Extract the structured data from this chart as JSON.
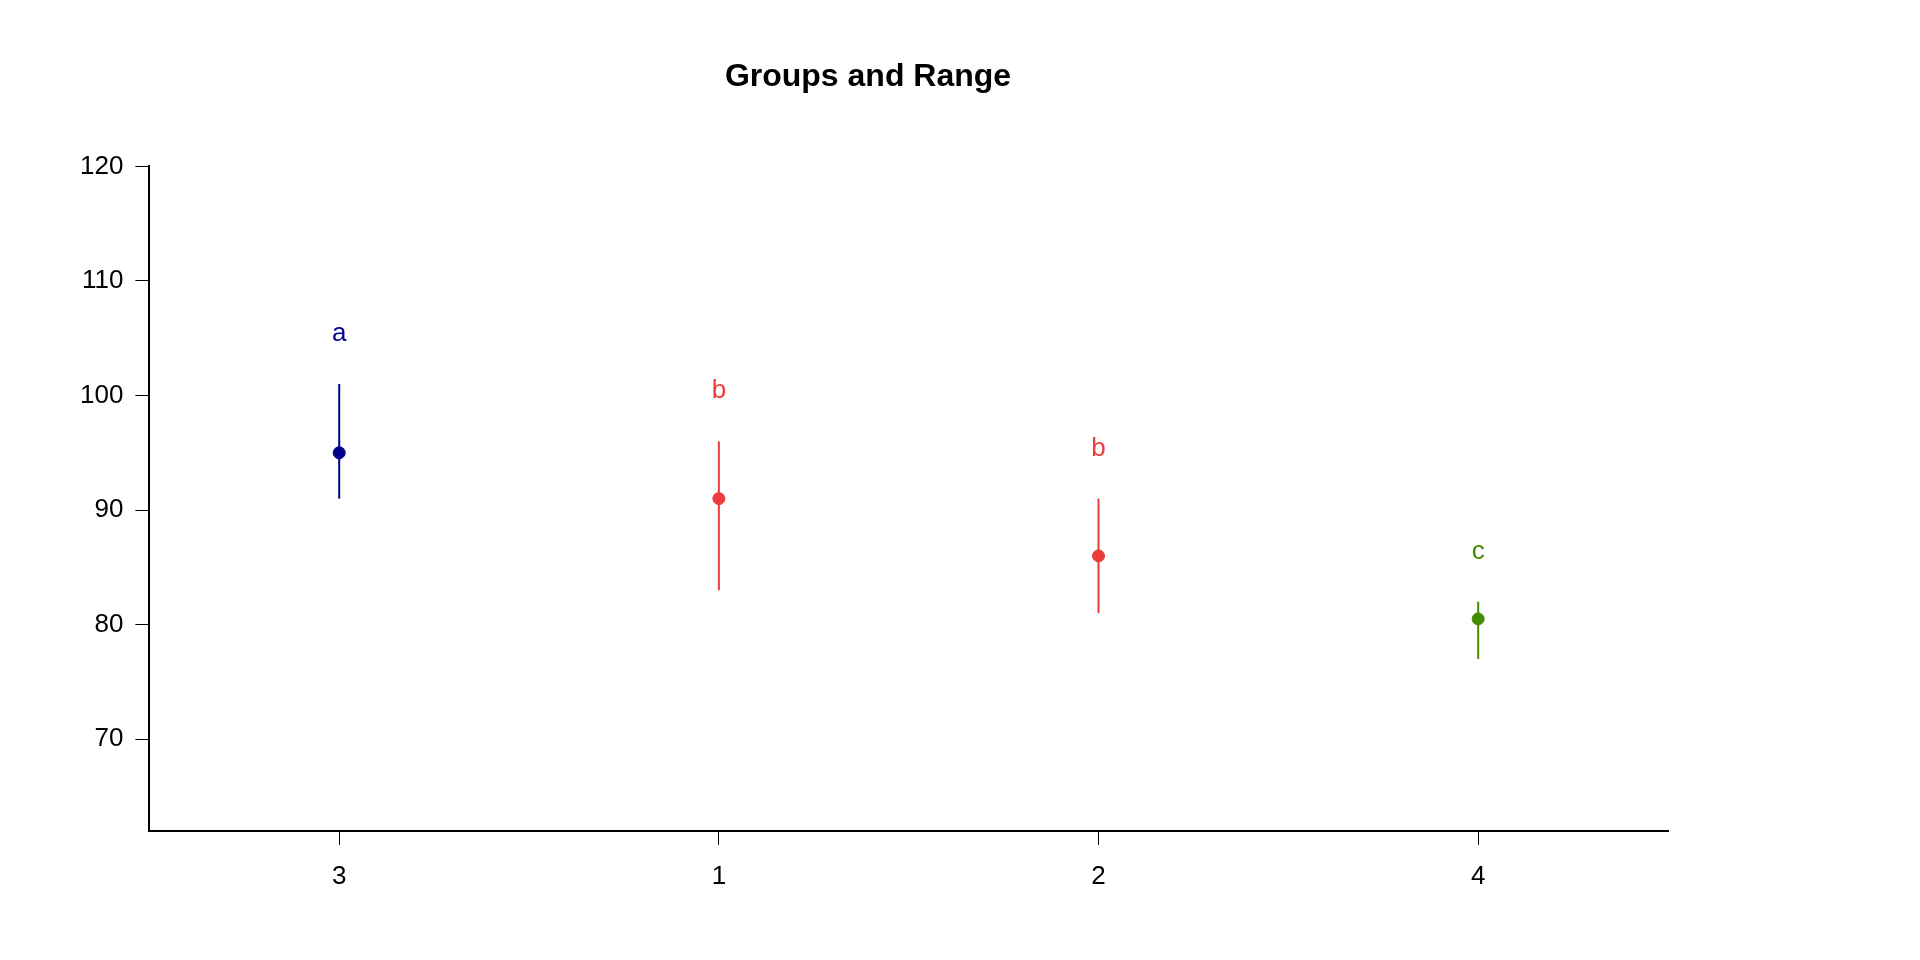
{
  "chart_data": {
    "type": "scatter",
    "title": "Groups and Range",
    "categories": [
      "3",
      "1",
      "2",
      "4"
    ],
    "values": [
      95,
      91,
      86,
      80.5
    ],
    "colors": [
      "#00008b",
      "#ee3b3b",
      "#ee3b3b",
      "#458b00"
    ],
    "errors": [
      [
        91,
        101
      ],
      [
        83,
        96
      ],
      [
        81,
        91
      ],
      [
        77,
        82
      ]
    ],
    "ylim": [
      62,
      120
    ],
    "yticks": [
      70,
      80,
      90,
      100,
      110,
      120
    ],
    "grid": false,
    "legend": false,
    "marker": "circle",
    "annotations": [
      "a",
      "b",
      "b",
      "c"
    ]
  }
}
